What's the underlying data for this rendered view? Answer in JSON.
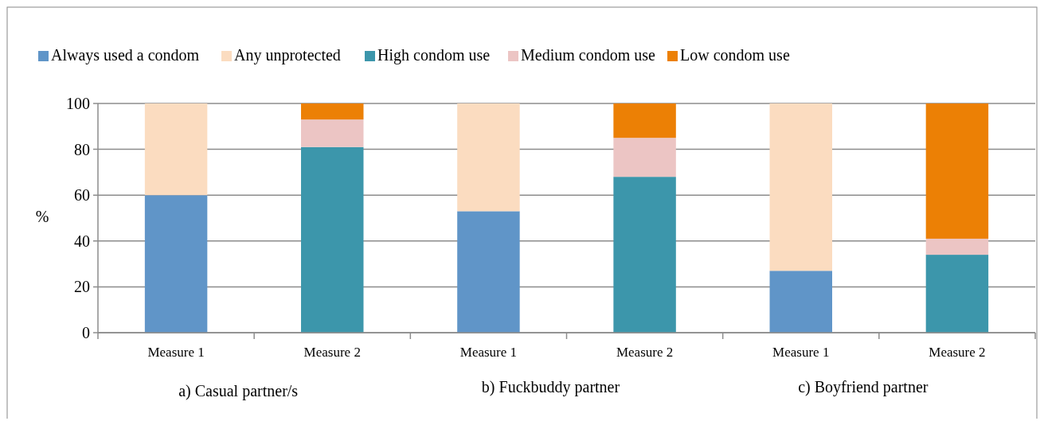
{
  "chart_data": {
    "type": "bar",
    "stacked": true,
    "ylabel": "%",
    "categories": [
      "Measure 1",
      "Measure 2",
      "Measure 1",
      "Measure 2",
      "Measure 1",
      "Measure 2"
    ],
    "series": [
      {
        "name": "Always used a condom",
        "color": "#6095c8",
        "values": [
          60,
          null,
          53,
          null,
          27,
          null
        ]
      },
      {
        "name": "Any unprotected",
        "color": "#fbdcc0",
        "values": [
          40,
          null,
          47,
          null,
          73,
          null
        ]
      },
      {
        "name": "High condom use",
        "color": "#3c96ab",
        "values": [
          null,
          81,
          null,
          68,
          null,
          34
        ]
      },
      {
        "name": "Medium condom use",
        "color": "#ecc5c4",
        "values": [
          null,
          12,
          null,
          17,
          null,
          7
        ]
      },
      {
        "name": "Low condom use",
        "color": "#ec8005",
        "values": [
          null,
          7,
          null,
          15,
          null,
          59
        ]
      }
    ],
    "ylim": [
      0,
      100
    ],
    "yticks": [
      0,
      20,
      40,
      60,
      80,
      100
    ],
    "grid": "y",
    "legend": "top",
    "annotations": [
      "a) Casual partner/s",
      "b) Fuckbuddy partner",
      "c) Boyfriend partner"
    ]
  }
}
